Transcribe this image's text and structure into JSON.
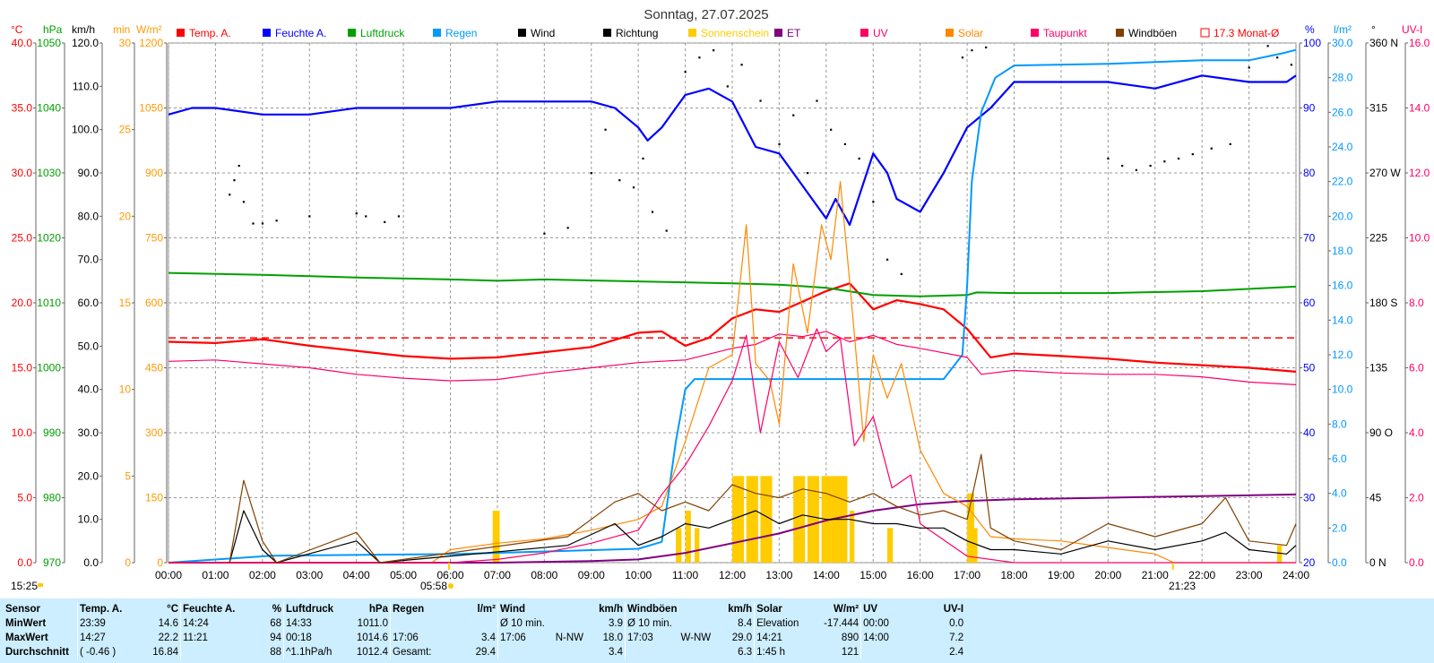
{
  "title": "Sonntag, 27.07.2025",
  "axis_headers": {
    "left": [
      {
        "text": "°C",
        "color": "#ff0000"
      },
      {
        "text": "hPa",
        "color": "#00a000"
      },
      {
        "text": "km/h",
        "color": "#000000"
      },
      {
        "text": "min",
        "color": "#ff9900"
      },
      {
        "text": "W/m²",
        "color": "#ff9900"
      }
    ],
    "right": [
      {
        "text": "%",
        "color": "#0000ff"
      },
      {
        "text": "l/m²",
        "color": "#0099ff"
      },
      {
        "text": "°",
        "color": "#000000"
      },
      {
        "text": "UV-I",
        "color": "#ff0066"
      }
    ]
  },
  "legend": [
    {
      "label": "Temp. A.",
      "color": "#ff0000"
    },
    {
      "label": "Feuchte A.",
      "color": "#0000ff"
    },
    {
      "label": "Luftdruck",
      "color": "#00a000"
    },
    {
      "label": "Regen",
      "color": "#0099ff"
    },
    {
      "label": "Wind",
      "color": "#000000"
    },
    {
      "label": "Richtung",
      "color": "#000000"
    },
    {
      "label": "Sonnenschein",
      "color": "#ffcc00"
    },
    {
      "label": "ET",
      "color": "#800080"
    },
    {
      "label": "UV",
      "color": "#ff0066"
    },
    {
      "label": "Solar",
      "color": "#ff8800"
    },
    {
      "label": "Taupunkt",
      "color": "#ff0066"
    },
    {
      "label": "Windböen",
      "color": "#804000"
    },
    {
      "label": "17.3 Monat-Ø",
      "color": "#ff0000"
    }
  ],
  "axis_ticks": {
    "temp": [
      "40.0",
      "35.0",
      "30.0",
      "25.0",
      "20.0",
      "15.0",
      "10.0",
      "5.0",
      "0.0"
    ],
    "pressure": [
      "1050",
      "1040",
      "1030",
      "1020",
      "1010",
      "1000",
      "990",
      "980",
      "970"
    ],
    "wind": [
      "120.0",
      "110.0",
      "100.0",
      "90.0",
      "80.0",
      "70.0",
      "60.0",
      "50.0",
      "40.0",
      "30.0",
      "20.0",
      "10.0",
      "0.0"
    ],
    "sunshine": [
      "30",
      "25",
      "20",
      "15",
      "10",
      "5",
      "0"
    ],
    "solar": [
      "1200",
      "1050",
      "900",
      "750",
      "600",
      "450",
      "300",
      "150",
      "0"
    ],
    "humidity": [
      "100",
      "90",
      "80",
      "70",
      "60",
      "50",
      "40",
      "30",
      "20"
    ],
    "rain": [
      "30.0",
      "28.0",
      "26.0",
      "24.0",
      "22.0",
      "20.0",
      "18.0",
      "16.0",
      "14.0",
      "12.0",
      "10.0",
      "8.0",
      "6.0",
      "4.0",
      "2.0",
      "0.0"
    ],
    "direction": [
      "360 N",
      "315",
      "270 W",
      "225",
      "180 S",
      "135",
      "90 O",
      "45",
      "0 N"
    ],
    "uvi": [
      "16.0",
      "14.0",
      "12.0",
      "10.0",
      "8.0",
      "6.0",
      "4.0",
      "2.0",
      "0.0"
    ],
    "time": [
      "00:00",
      "01:00",
      "02:00",
      "03:00",
      "04:00",
      "05:00",
      "06:00",
      "07:00",
      "08:00",
      "09:00",
      "10:00",
      "11:00",
      "12:00",
      "13:00",
      "14:00",
      "15:00",
      "16:00",
      "17:00",
      "18:00",
      "19:00",
      "20:00",
      "21:00",
      "22:00",
      "23:00",
      "24:00"
    ]
  },
  "markers": {
    "now": "15:25",
    "sunrise": "05:58",
    "sunset": "21:23"
  },
  "chart_data": {
    "type": "line",
    "x_unit": "hour",
    "month_avg_temp": 17.3,
    "series": [
      {
        "name": "Temp. A.",
        "axis": "temp",
        "x": [
          0,
          1,
          2,
          3,
          4,
          5,
          6,
          7,
          8,
          9,
          10,
          10.5,
          11,
          11.5,
          12,
          12.5,
          13,
          13.5,
          14,
          14.5,
          15,
          15.5,
          16,
          16.5,
          17,
          17.5,
          18,
          19,
          20,
          21,
          22,
          23,
          24
        ],
        "values": [
          17.0,
          16.9,
          17.2,
          16.7,
          16.3,
          15.9,
          15.7,
          15.8,
          16.2,
          16.6,
          17.7,
          17.8,
          16.7,
          17.3,
          18.8,
          19.5,
          19.3,
          20.1,
          20.9,
          21.5,
          19.5,
          20.2,
          19.9,
          19.5,
          18.0,
          15.8,
          16.1,
          15.9,
          15.7,
          15.4,
          15.2,
          15.0,
          14.7
        ]
      },
      {
        "name": "Feuchte A.",
        "axis": "humidity",
        "x": [
          0,
          0.5,
          1,
          2,
          3,
          4,
          5,
          6,
          7,
          8,
          9,
          9.5,
          10,
          10.2,
          10.5,
          11,
          11.5,
          12,
          12.5,
          13,
          13.5,
          14,
          14.2,
          14.5,
          15,
          15.3,
          15.5,
          16,
          16.5,
          17,
          17.5,
          18,
          19,
          20,
          21,
          22,
          23,
          23.8,
          24
        ],
        "values": [
          89,
          90,
          90,
          89,
          89,
          90,
          90,
          90,
          91,
          91,
          91,
          90,
          87,
          85,
          87,
          92,
          93,
          91,
          84,
          83,
          78,
          73,
          76,
          72,
          83,
          80,
          76,
          74,
          80,
          87,
          90,
          94,
          94,
          94,
          93,
          95,
          94,
          94,
          95
        ]
      },
      {
        "name": "Luftdruck",
        "axis": "pressure",
        "x": [
          0,
          2,
          4,
          6,
          7,
          8,
          10,
          12,
          13,
          14,
          15,
          16,
          17,
          17.2,
          18,
          20,
          22,
          24
        ],
        "values": [
          1014.6,
          1014.3,
          1013.9,
          1013.6,
          1013.4,
          1013.6,
          1013.3,
          1013.0,
          1012.8,
          1012.3,
          1011.2,
          1011.0,
          1011.2,
          1011.6,
          1011.5,
          1011.5,
          1011.8,
          1012.5
        ]
      },
      {
        "name": "Regen",
        "axis": "rain",
        "x": [
          0,
          2.2,
          6.2,
          10,
          10.5,
          10.8,
          11.0,
          11.2,
          16.5,
          16.9,
          17.0,
          17.1,
          17.3,
          17.6,
          18,
          20,
          21,
          22,
          23,
          23.7,
          24
        ],
        "values": [
          0,
          0.4,
          0.5,
          0.8,
          1.2,
          7,
          10,
          10.6,
          10.6,
          12,
          16,
          22,
          26,
          28,
          28.7,
          28.8,
          28.9,
          29.0,
          29.0,
          29.4,
          29.6
        ]
      },
      {
        "name": "Taupunkt",
        "axis": "temp",
        "x": [
          0,
          1,
          2,
          3,
          4,
          5,
          6,
          7,
          8,
          9,
          10,
          11,
          12,
          12.5,
          13,
          13.5,
          14,
          14.5,
          15,
          15.5,
          16,
          17,
          17.3,
          18,
          19,
          20,
          21,
          22,
          23,
          24
        ],
        "values": [
          15.5,
          15.6,
          15.3,
          15.0,
          14.5,
          14.2,
          14.0,
          14.1,
          14.6,
          15.0,
          15.4,
          15.6,
          16.5,
          16.8,
          17.6,
          17.4,
          17.8,
          17.0,
          17.5,
          16.8,
          16.5,
          15.8,
          14.5,
          14.8,
          14.6,
          14.5,
          14.5,
          14.3,
          13.9,
          13.7
        ]
      },
      {
        "name": "ET",
        "axis": "uvi",
        "x": [
          0,
          7,
          9,
          10,
          11,
          12,
          13,
          14,
          15,
          16,
          17,
          18,
          20,
          22,
          24
        ],
        "values": [
          0,
          0,
          0.05,
          0.1,
          0.3,
          0.6,
          0.9,
          1.3,
          1.6,
          1.8,
          1.9,
          1.95,
          2.0,
          2.05,
          2.1
        ]
      },
      {
        "name": "Solar",
        "axis": "solar",
        "x": [
          0,
          5.6,
          6,
          7,
          8,
          9,
          10,
          10.5,
          11,
          11.5,
          12,
          12.3,
          12.5,
          12.8,
          13,
          13.3,
          13.6,
          13.9,
          14.1,
          14.3,
          14.5,
          14.8,
          15,
          15.3,
          15.6,
          16,
          16.5,
          17,
          17.5,
          18,
          19,
          20,
          21,
          21.4,
          24
        ],
        "values": [
          0,
          0,
          30,
          45,
          55,
          75,
          100,
          130,
          280,
          450,
          480,
          780,
          460,
          420,
          320,
          690,
          530,
          780,
          700,
          880,
          650,
          280,
          480,
          380,
          460,
          260,
          160,
          130,
          60,
          55,
          50,
          35,
          20,
          0,
          0
        ]
      },
      {
        "name": "UV",
        "axis": "uvi",
        "x": [
          0,
          6,
          7,
          8,
          9,
          10,
          10.5,
          11,
          11.5,
          12,
          12.3,
          12.6,
          13,
          13.4,
          13.8,
          14.0,
          14.3,
          14.6,
          15,
          15.4,
          15.8,
          16,
          16.5,
          17,
          18,
          24
        ],
        "values": [
          0,
          0,
          0.1,
          0.3,
          0.6,
          1.0,
          2.1,
          3.0,
          4.2,
          5.6,
          7.0,
          4.0,
          6.8,
          5.7,
          7.2,
          6.5,
          6.9,
          3.6,
          4.5,
          2.3,
          2.7,
          1.2,
          0.7,
          0.2,
          0,
          0
        ]
      },
      {
        "name": "Wind",
        "axis": "wind",
        "x": [
          1.3,
          1.6,
          2.0,
          2.3,
          4.0,
          4.5,
          8.5,
          9.5,
          10,
          10.5,
          11,
          11.5,
          12,
          12.5,
          13,
          13.5,
          14,
          14.5,
          15,
          15.5,
          16,
          16.5,
          17,
          17.5,
          18,
          19,
          20,
          21,
          22,
          22.5,
          23,
          23.8,
          24
        ],
        "values": [
          0,
          12,
          3,
          0,
          5,
          0,
          4,
          9,
          4,
          6,
          9,
          8,
          10,
          12,
          9,
          11,
          10,
          10,
          9,
          9,
          8,
          8,
          5,
          3,
          3,
          2,
          5,
          3,
          5,
          7,
          3,
          2,
          4
        ]
      },
      {
        "name": "Windböen",
        "axis": "wind",
        "x": [
          1.3,
          1.6,
          2.0,
          2.3,
          4.0,
          4.5,
          8.5,
          9.5,
          10,
          10.5,
          11,
          11.5,
          12,
          12.5,
          13,
          13.5,
          14,
          14.5,
          15,
          15.5,
          16,
          16.5,
          17,
          17.3,
          17.5,
          18,
          19,
          20,
          21,
          22,
          22.5,
          23,
          23.8,
          24
        ],
        "values": [
          0,
          19,
          5,
          0,
          7,
          0,
          6,
          14,
          16,
          12,
          14,
          12,
          18,
          16,
          15,
          17,
          16,
          14,
          16,
          13,
          11,
          12,
          10,
          25,
          8,
          5,
          3,
          9,
          6,
          9,
          15,
          5,
          4,
          9
        ]
      }
    ],
    "direction_points": {
      "axis": "direction",
      "x": [
        1.3,
        1.4,
        1.5,
        1.6,
        1.8,
        2.0,
        2.3,
        3.0,
        4.0,
        4.2,
        4.6,
        4.9,
        8.0,
        8.5,
        9.0,
        9.3,
        9.6,
        9.9,
        10.1,
        10.3,
        10.6,
        11.0,
        11.3,
        11.6,
        11.9,
        12.2,
        12.6,
        13.0,
        13.3,
        13.6,
        13.8,
        14.1,
        14.4,
        14.7,
        15.0,
        15.3,
        15.6,
        16.9,
        17.1,
        17.4,
        20.0,
        20.3,
        20.6,
        20.9,
        21.2,
        21.5,
        21.8,
        22.2,
        22.6,
        23.0,
        23.4,
        23.6,
        23.9
      ],
      "values": [
        255,
        265,
        275,
        250,
        235,
        235,
        237,
        240,
        242,
        240,
        236,
        240,
        228,
        232,
        270,
        300,
        265,
        260,
        280,
        243,
        230,
        340,
        350,
        355,
        330,
        345,
        320,
        290,
        310,
        270,
        320,
        300,
        290,
        280,
        250,
        210,
        200,
        350,
        355,
        357,
        280,
        275,
        272,
        275,
        278,
        280,
        283,
        287,
        290,
        343,
        358,
        350,
        345
      ]
    },
    "sunshine_blocks": {
      "axis": "sunshine",
      "x": [
        6.9,
        10.8,
        11.0,
        11.2,
        12.0,
        12.3,
        12.6,
        13.3,
        13.6,
        13.9,
        14.1,
        14.3,
        14.5,
        15.3,
        17.0,
        17.1,
        23.6
      ],
      "widths": [
        0.15,
        0.12,
        0.12,
        0.1,
        0.25,
        0.25,
        0.25,
        0.25,
        0.25,
        0.2,
        0.2,
        0.15,
        0.1,
        0.12,
        0.15,
        0.12,
        0.1
      ],
      "values": [
        3,
        2,
        3,
        2,
        5,
        5,
        5,
        5,
        5,
        5,
        5,
        5,
        3,
        2,
        4,
        2,
        1
      ]
    }
  },
  "stats": {
    "header": {
      "sensor": "Sensor",
      "temp": "Temp. A.",
      "temp_unit": "°C",
      "hum": "Feuchte A.",
      "hum_unit": "%",
      "press": "Luftdruck",
      "press_unit": "hPa",
      "rain": "Regen",
      "rain_unit": "l/m²",
      "wind": "Wind",
      "wind_unit": "km/h",
      "gust": "Windböen",
      "gust_unit": "km/h",
      "solar": "Solar",
      "solar_unit": "W/m²",
      "uv": "UV",
      "uv_unit": "UV-I"
    },
    "rows": [
      {
        "label": "MinWert",
        "temp_t": "23:39",
        "temp_v": "14.6",
        "hum_t": "14:24",
        "hum_v": "68",
        "press_t": "14:33",
        "press_v": "1011.0",
        "rain_t": "",
        "rain_v": "",
        "wind_t": "Ø 10 min.",
        "wind_v": "3.9",
        "gust_t": "Ø 10 min.",
        "gust_v": "8.4",
        "solar_t": "Elevation",
        "solar_v": "-17.444",
        "uv_t": "00:00",
        "uv_v": "0.0"
      },
      {
        "label": "MaxWert",
        "temp_t": "14:27",
        "temp_v": "22.2",
        "hum_t": "11:21",
        "hum_v": "94",
        "press_t": "00:18",
        "press_v": "1014.6",
        "rain_t": "17:06",
        "rain_v": "3.4",
        "wind_t": "17:06",
        "wind_d": "N-NW",
        "wind_v": "18.0",
        "gust_t": "17:03",
        "gust_d": "W-NW",
        "gust_v": "29.0",
        "solar_t": "14:21",
        "solar_v": "890",
        "uv_t": "14:00",
        "uv_v": "7.2"
      },
      {
        "label": "Durchschnitt",
        "temp_t": "( -0.46 )",
        "temp_v": "16.84",
        "hum_t": "",
        "hum_v": "88",
        "press_t": "^1.1hPa/h",
        "press_v": "1012.4",
        "rain_t": "Gesamt:",
        "rain_v": "29.4",
        "wind_t": "",
        "wind_v": "3.4",
        "gust_t": "",
        "gust_v": "6.3",
        "solar_t": "1:45 h",
        "solar_v": "121",
        "uv_t": "",
        "uv_v": "2.4"
      }
    ]
  }
}
